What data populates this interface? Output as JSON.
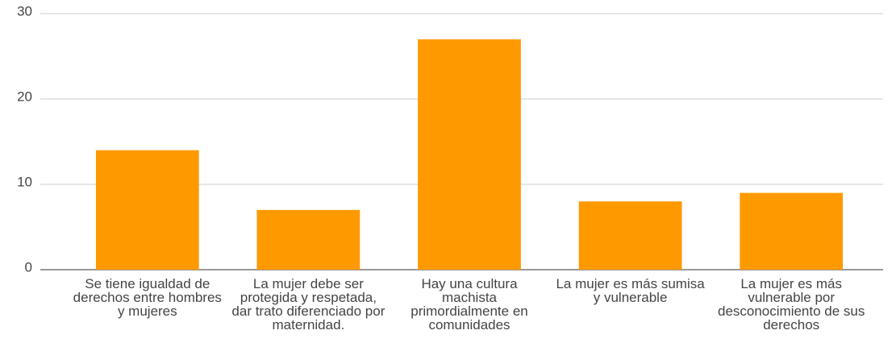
{
  "chart_data": {
    "type": "bar",
    "categories": [
      "Se tiene igualdad de derechos entre hombres y mujeres",
      "La mujer debe ser protegida y respetada, dar trato diferenciado por maternidad.",
      "Hay una cultura machista primordialmente en comunidades",
      "La mujer es más sumisa y vulnerable",
      "La mujer es más vulnerable por desconocimiento de sus derechos"
    ],
    "values": [
      14,
      7,
      27,
      8,
      9
    ],
    "color": "#ff9900",
    "ylim": [
      0,
      30
    ],
    "yticks": [
      0,
      10,
      20,
      30
    ],
    "grid": true
  }
}
